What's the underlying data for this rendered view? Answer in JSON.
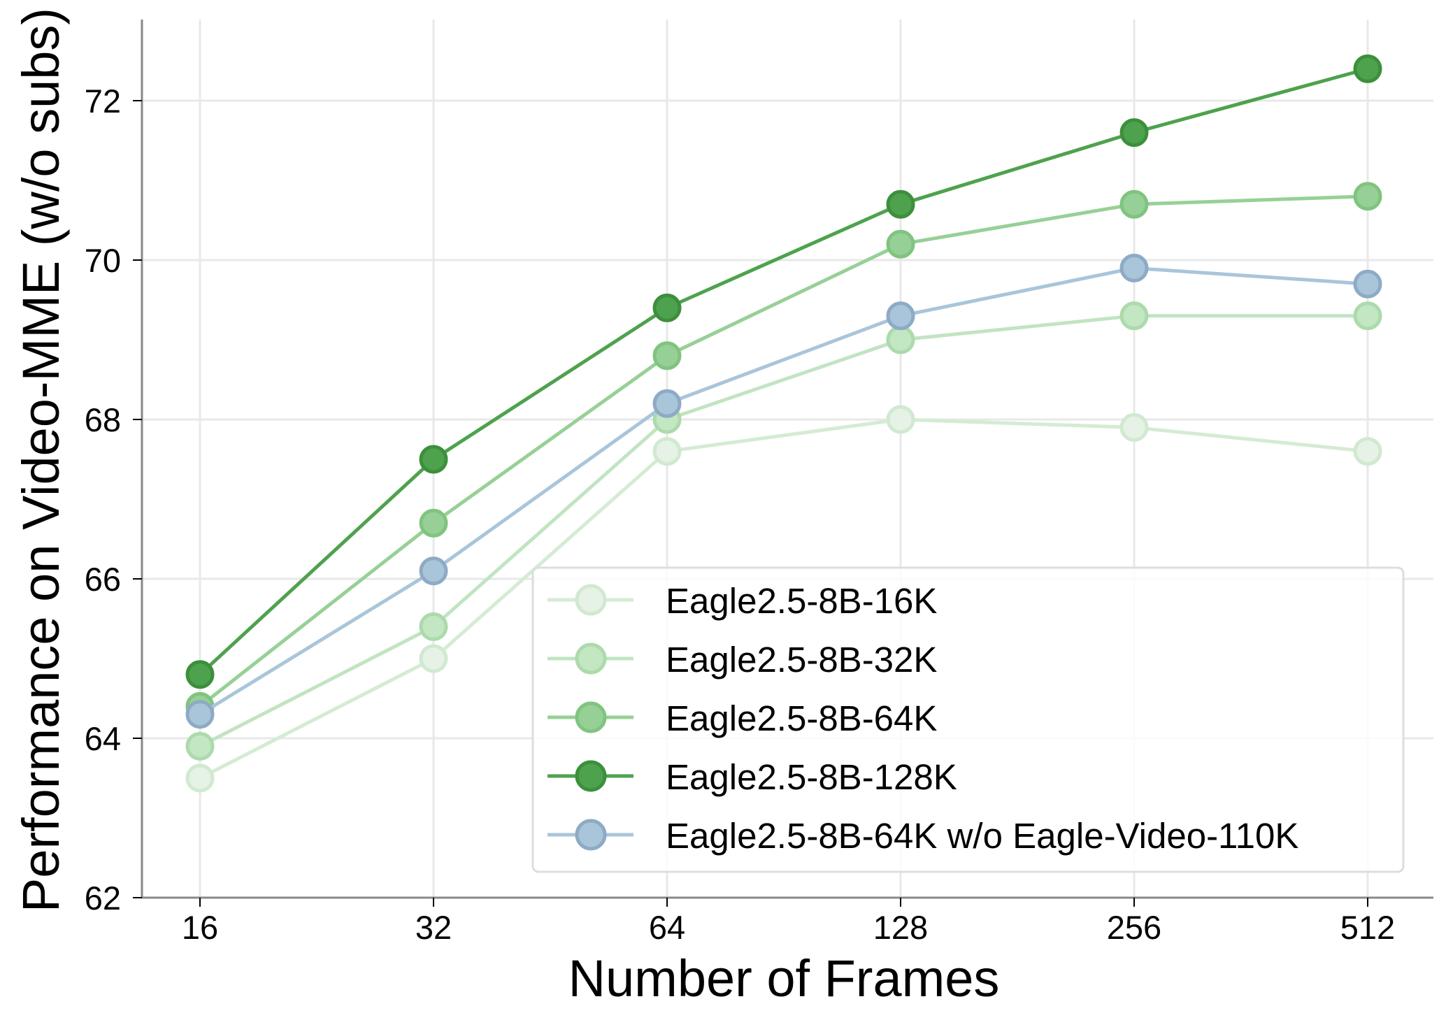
{
  "chart_data": {
    "type": "line",
    "title": "",
    "xlabel": "Number of Frames",
    "ylabel": "Performance on Video-MME (w/o subs)",
    "x": [
      16,
      32,
      64,
      128,
      256,
      512
    ],
    "x_tick_labels": [
      "16",
      "32",
      "64",
      "128",
      "256",
      "512"
    ],
    "x_scale": "log2",
    "y_ticks": [
      62,
      64,
      66,
      68,
      70,
      72
    ],
    "y_tick_labels": [
      "62",
      "64",
      "66",
      "68",
      "70",
      "72"
    ],
    "ylim": [
      62,
      73
    ],
    "grid": true,
    "legend_position": "lower right",
    "series": [
      {
        "name": "Eagle2.5-8B-16K",
        "values": [
          63.5,
          65.0,
          67.6,
          68.0,
          67.9,
          67.6
        ],
        "line_color": "#d4ebd4",
        "marker_fill": "#e6f2e6",
        "marker_edge": "#d0e9d0"
      },
      {
        "name": "Eagle2.5-8B-32K",
        "values": [
          63.9,
          65.4,
          68.0,
          69.0,
          69.3,
          69.3
        ],
        "line_color": "#c1e4c1",
        "marker_fill": "#c3e6c3",
        "marker_edge": "#acdaac"
      },
      {
        "name": "Eagle2.5-8B-64K",
        "values": [
          64.4,
          66.7,
          68.8,
          70.2,
          70.7,
          70.8
        ],
        "line_color": "#97d096",
        "marker_fill": "#97d096",
        "marker_edge": "#80c47f"
      },
      {
        "name": "Eagle2.5-8B-128K",
        "values": [
          64.8,
          67.5,
          69.4,
          70.7,
          71.6,
          72.4
        ],
        "line_color": "#4ea24d",
        "marker_fill": "#4ea24d",
        "marker_edge": "#3c8f3b"
      },
      {
        "name": "Eagle2.5-8B-64K w/o Eagle-Video-110K",
        "values": [
          64.3,
          66.1,
          68.2,
          69.3,
          69.9,
          69.7
        ],
        "line_color": "#a9c5da",
        "marker_fill": "#a9c5da",
        "marker_edge": "#8eaac5"
      }
    ]
  },
  "colors": {
    "axis": "#888888",
    "grid": "#e8e8e8",
    "legend_border": "#dddddd",
    "text": "#000000"
  }
}
